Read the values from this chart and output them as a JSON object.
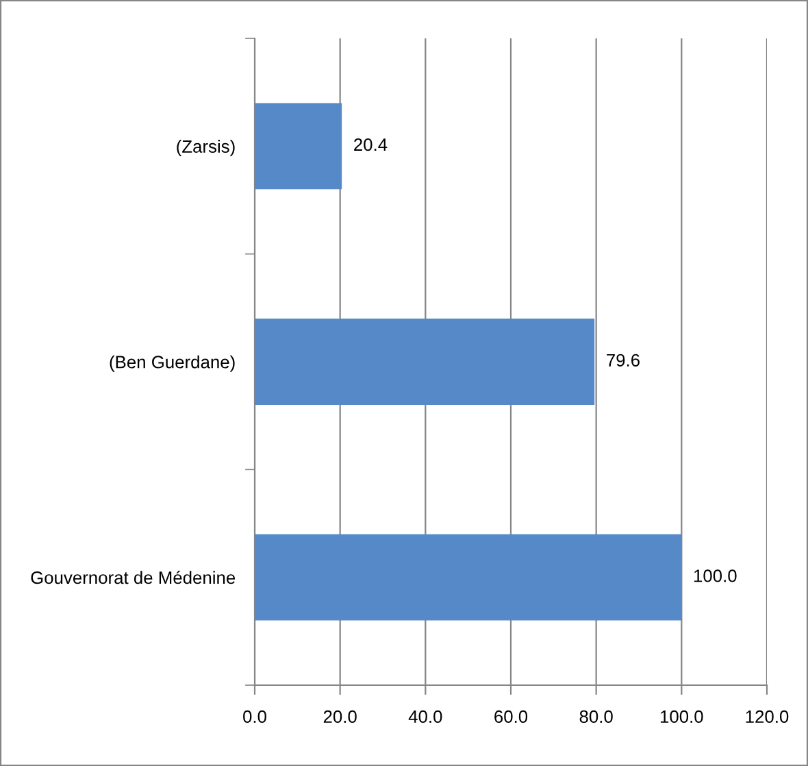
{
  "chart_data": {
    "type": "bar",
    "orientation": "horizontal",
    "categories": [
      "(Zarsis)",
      "(Ben Guerdane)",
      "Gouvernorat de Médenine"
    ],
    "values": [
      20.4,
      79.6,
      100.0
    ],
    "color": "#5589c8",
    "value_labels": [
      "20.4",
      "79.6",
      "100.0"
    ],
    "xlim": [
      0,
      120
    ],
    "xticks": [
      {
        "value": 0,
        "label": "0.0"
      },
      {
        "value": 20,
        "label": "20.0"
      },
      {
        "value": 40,
        "label": "40.0"
      },
      {
        "value": 60,
        "label": "60.0"
      },
      {
        "value": 80,
        "label": "80.0"
      },
      {
        "value": 100,
        "label": "100.0"
      },
      {
        "value": 120,
        "label": "120.0"
      }
    ],
    "grid": "x",
    "legend": false
  }
}
